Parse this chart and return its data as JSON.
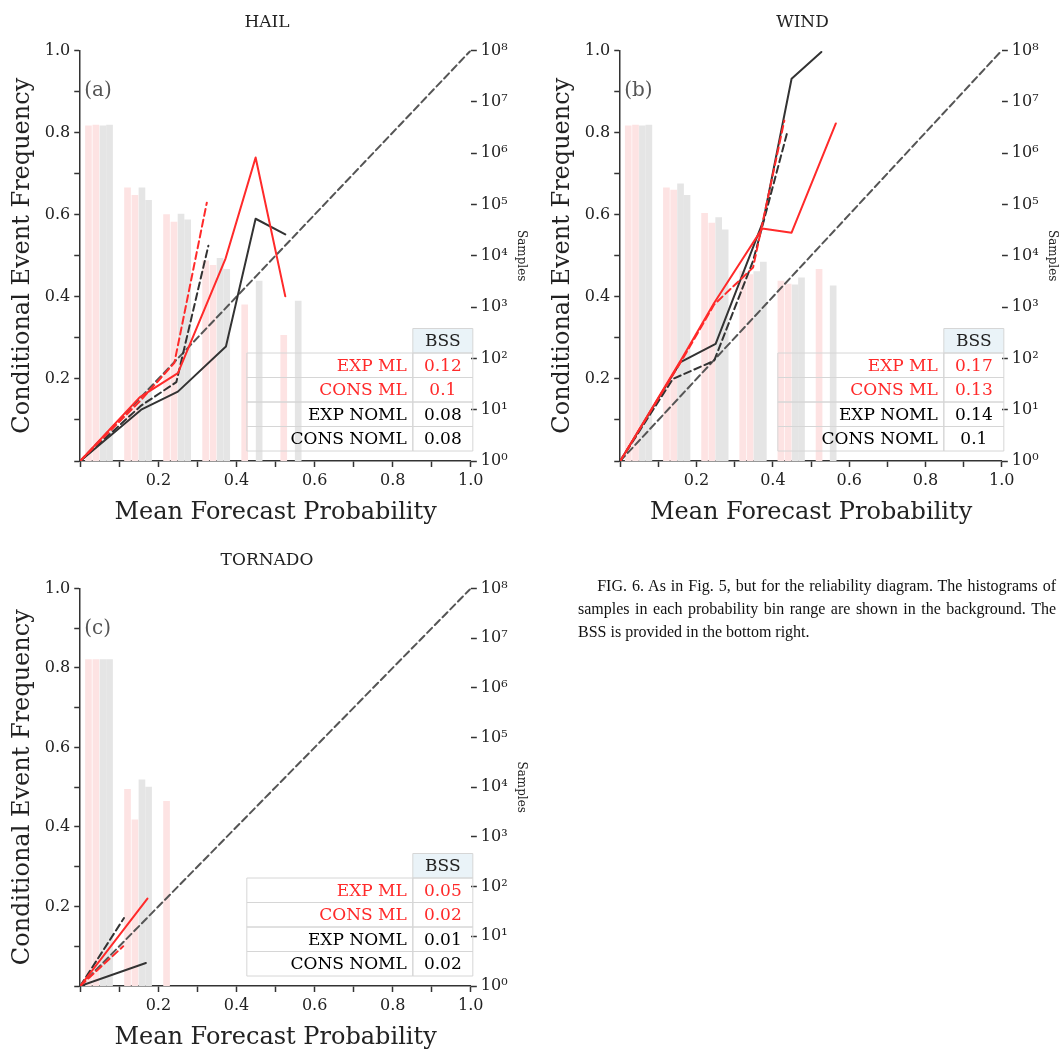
{
  "chart_data": [
    {
      "type": "line",
      "title": "HAIL",
      "xlabel": "Mean Forecast Probability",
      "ylabel": "Conditional Event Frequency",
      "y2label": "Samples",
      "marker": "none",
      "log": "y2",
      "xlim": [
        0,
        1
      ],
      "xticks": [
        {
          "value": 0,
          "label": null
        },
        {
          "value": 0.1,
          "label": null
        },
        0.2,
        {
          "value": 0.3,
          "label": null
        },
        0.4,
        {
          "value": 0.5,
          "label": null
        },
        0.6,
        {
          "value": 0.7,
          "label": null
        },
        0.8,
        {
          "value": 0.9,
          "label": null
        },
        {
          "value": 1,
          "label": "1.0"
        }
      ],
      "ylim": [
        0,
        1
      ],
      "yticks": [
        {
          "value": 0,
          "label": null
        },
        {
          "value": 0.1,
          "label": null
        },
        0.2,
        {
          "value": 0.3,
          "label": null
        },
        0.4,
        {
          "value": 0.5,
          "label": null
        },
        0.6,
        {
          "value": 0.7,
          "label": null
        },
        0.8,
        {
          "value": 0.9,
          "label": null
        },
        {
          "value": 1,
          "label": "1.0"
        }
      ],
      "y2lim": [
        1,
        100000000
      ],
      "y2ticks": [
        {
          "value": 1,
          "label": "10⁰"
        },
        {
          "value": 10,
          "label": "10¹"
        },
        {
          "value": 100,
          "label": "10²"
        },
        {
          "value": 1000,
          "label": "10³"
        },
        {
          "value": 10000,
          "label": "10⁴"
        },
        {
          "value": 100000,
          "label": "10⁵"
        },
        {
          "value": 1000000,
          "label": "10⁶"
        },
        {
          "value": 10000000,
          "label": "10⁷"
        },
        {
          "value": 100000000,
          "label": "10⁸"
        }
      ],
      "annotations": [
        "(a)",
        "BSS",
        "EXP ML",
        "0.12",
        "CONS ML",
        "0.1",
        "EXP NOML",
        "0.08",
        "CONS NOML",
        "0.08"
      ],
      "series": [
        {
          "type": "bar",
          "axis": "y2",
          "color": "#fde3e3",
          "x": [
            0.021,
            0.121,
            0.221,
            0.321,
            0.421,
            0.521
          ],
          "values": [
            3400000,
            210000,
            63000,
            7900,
            1100,
            280
          ]
        },
        {
          "type": "bar",
          "axis": "y2",
          "color": "#fde3e3",
          "x": [
            0.04,
            0.14,
            0.24,
            0.34
          ],
          "values": [
            3500000,
            150000,
            45000,
            6500
          ]
        },
        {
          "type": "bar",
          "axis": "y2",
          "color": "#e5e5e5",
          "x": [
            0.058,
            0.158,
            0.258,
            0.358,
            0.458,
            0.558
          ],
          "values": [
            3400000,
            210000,
            65000,
            8900,
            3200,
            1300
          ]
        },
        {
          "type": "bar",
          "axis": "y2",
          "color": "#e5e5e5",
          "x": [
            0.075,
            0.175,
            0.275,
            0.375
          ],
          "values": [
            3500000,
            120000,
            50000,
            5400
          ]
        },
        {
          "type": "line",
          "line_style": "solid",
          "color": "#ff2a2a",
          "x": [
            0,
            0.152,
            0.25,
            0.372,
            0.449,
            0.525
          ],
          "values": [
            0,
            0.155,
            0.214,
            0.493,
            0.739,
            0.401
          ]
        },
        {
          "type": "line",
          "line_style": "dashed",
          "color": "#ff2a2a",
          "x": [
            0,
            0.156,
            0.241,
            0.324
          ],
          "values": [
            0,
            0.149,
            0.239,
            0.629
          ]
        },
        {
          "type": "line",
          "line_style": "solid",
          "color": "#333333",
          "x": [
            0,
            0.156,
            0.25,
            0.373,
            0.449,
            0.525
          ],
          "values": [
            0,
            0.125,
            0.169,
            0.279,
            0.59,
            0.552
          ]
        },
        {
          "type": "line",
          "line_style": "dashed",
          "color": "#333333",
          "x": [
            0,
            0.156,
            0.246,
            0.328
          ],
          "values": [
            0,
            0.135,
            0.192,
            0.524
          ]
        },
        {
          "type": "line",
          "line_style": "dashed",
          "color": "#555555",
          "x": [
            0,
            1
          ],
          "values": [
            0,
            1
          ]
        }
      ]
    },
    {
      "type": "line",
      "title": "WIND",
      "xlabel": "Mean Forecast Probability",
      "ylabel": "Conditional Event Frequency",
      "y2label": "Samples",
      "marker": "none",
      "log": "y2",
      "xlim": [
        0,
        1
      ],
      "xticks": [
        {
          "value": 0,
          "label": null
        },
        {
          "value": 0.1,
          "label": null
        },
        0.2,
        {
          "value": 0.3,
          "label": null
        },
        0.4,
        {
          "value": 0.5,
          "label": null
        },
        0.6,
        {
          "value": 0.7,
          "label": null
        },
        0.8,
        {
          "value": 0.9,
          "label": null
        },
        {
          "value": 1,
          "label": "1.0"
        }
      ],
      "ylim": [
        0,
        1
      ],
      "yticks": [
        {
          "value": 0,
          "label": null
        },
        {
          "value": 0.1,
          "label": null
        },
        0.2,
        {
          "value": 0.3,
          "label": null
        },
        0.4,
        {
          "value": 0.5,
          "label": null
        },
        0.6,
        {
          "value": 0.7,
          "label": null
        },
        0.8,
        {
          "value": 0.9,
          "label": null
        },
        {
          "value": 1,
          "label": "1.0"
        }
      ],
      "y2lim": [
        1,
        100000000
      ],
      "y2ticks": [
        {
          "value": 1,
          "label": "10⁰"
        },
        {
          "value": 10,
          "label": "10¹"
        },
        {
          "value": 100,
          "label": "10²"
        },
        {
          "value": 1000,
          "label": "10³"
        },
        {
          "value": 10000,
          "label": "10⁴"
        },
        {
          "value": 100000,
          "label": "10⁵"
        },
        {
          "value": 1000000,
          "label": "10⁶"
        },
        {
          "value": 10000000,
          "label": "10⁷"
        },
        {
          "value": 100000000,
          "label": "10⁸"
        }
      ],
      "annotations": [
        "(b)",
        "BSS",
        "EXP ML",
        "0.17",
        "CONS ML",
        "0.13",
        "EXP NOML",
        "0.14",
        "CONS NOML",
        "0.1"
      ],
      "series": [
        {
          "type": "bar",
          "axis": "y2",
          "color": "#fde3e3",
          "x": [
            0.021,
            0.121,
            0.221,
            0.321,
            0.421,
            0.521
          ],
          "values": [
            3400000,
            210000,
            67000,
            5000,
            3200,
            5400
          ]
        },
        {
          "type": "bar",
          "axis": "y2",
          "color": "#fde3e3",
          "x": [
            0.04,
            0.14,
            0.24,
            0.34,
            0.44
          ],
          "values": [
            3500000,
            190000,
            43000,
            4300,
            2800
          ]
        },
        {
          "type": "bar",
          "axis": "y2",
          "color": "#e5e5e5",
          "x": [
            0.058,
            0.158,
            0.258,
            0.358,
            0.458,
            0.558
          ],
          "values": [
            3400000,
            250000,
            55000,
            4900,
            2700,
            2600
          ]
        },
        {
          "type": "bar",
          "axis": "y2",
          "color": "#e5e5e5",
          "x": [
            0.075,
            0.175,
            0.275,
            0.375,
            0.475
          ],
          "values": [
            3500000,
            150000,
            32000,
            7500,
            3700
          ]
        },
        {
          "type": "line",
          "line_style": "solid",
          "color": "#ff2a2a",
          "x": [
            0,
            0.165,
            0.246,
            0.372,
            0.449,
            0.565
          ],
          "values": [
            0,
            0.255,
            0.385,
            0.566,
            0.556,
            0.822
          ]
        },
        {
          "type": "line",
          "line_style": "dashed",
          "color": "#ff2a2a",
          "x": [
            0,
            0.165,
            0.246,
            0.348,
            0.43
          ],
          "values": [
            0,
            0.251,
            0.381,
            0.471,
            0.829
          ]
        },
        {
          "type": "line",
          "line_style": "solid",
          "color": "#333333",
          "x": [
            0,
            0.158,
            0.25,
            0.375,
            0.449,
            0.527
          ],
          "values": [
            0,
            0.241,
            0.285,
            0.585,
            0.931,
            0.996
          ]
        },
        {
          "type": "line",
          "line_style": "dashed",
          "color": "#333333",
          "x": [
            0,
            0.138,
            0.246,
            0.348,
            0.439
          ],
          "values": [
            0,
            0.2,
            0.244,
            0.487,
            0.805
          ]
        },
        {
          "type": "line",
          "line_style": "dashed",
          "color": "#555555",
          "x": [
            0,
            1
          ],
          "values": [
            0,
            1
          ]
        }
      ]
    },
    {
      "type": "line",
      "title": "TORNADO",
      "xlabel": "Mean Forecast Probability",
      "ylabel": "Conditional Event Frequency",
      "y2label": "Samples",
      "marker": "none",
      "log": "y2",
      "xlim": [
        0,
        1
      ],
      "xticks": [
        {
          "value": 0,
          "label": null
        },
        {
          "value": 0.1,
          "label": null
        },
        0.2,
        {
          "value": 0.3,
          "label": null
        },
        0.4,
        {
          "value": 0.5,
          "label": null
        },
        0.6,
        {
          "value": 0.7,
          "label": null
        },
        0.8,
        {
          "value": 0.9,
          "label": null
        },
        {
          "value": 1,
          "label": "1.0"
        }
      ],
      "ylim": [
        0,
        1
      ],
      "yticks": [
        {
          "value": 0,
          "label": null
        },
        {
          "value": 0.1,
          "label": null
        },
        0.2,
        {
          "value": 0.3,
          "label": null
        },
        0.4,
        {
          "value": 0.5,
          "label": null
        },
        0.6,
        {
          "value": 0.7,
          "label": null
        },
        0.8,
        {
          "value": 0.9,
          "label": null
        },
        {
          "value": 1,
          "label": "1.0"
        }
      ],
      "y2lim": [
        1,
        100000000
      ],
      "y2ticks": [
        {
          "value": 1,
          "label": "10⁰"
        },
        {
          "value": 10,
          "label": "10¹"
        },
        {
          "value": 100,
          "label": "10²"
        },
        {
          "value": 1000,
          "label": "10³"
        },
        {
          "value": 10000,
          "label": "10⁴"
        },
        {
          "value": 100000,
          "label": "10⁵"
        },
        {
          "value": 1000000,
          "label": "10⁶"
        },
        {
          "value": 10000000,
          "label": "10⁷"
        },
        {
          "value": 100000000,
          "label": "10⁸"
        }
      ],
      "annotations": [
        "(c)",
        "BSS",
        "EXP ML",
        "0.05",
        "CONS ML",
        "0.02",
        "EXP NOML",
        "0.01",
        "CONS NOML",
        "0.02"
      ],
      "series": [
        {
          "type": "bar",
          "axis": "y2",
          "color": "#fde3e3",
          "x": [
            0.021,
            0.121,
            0.221
          ],
          "values": [
            3700000,
            9100,
            5200
          ]
        },
        {
          "type": "bar",
          "axis": "y2",
          "color": "#fde3e3",
          "x": [
            0.04,
            0.14
          ],
          "values": [
            3700000,
            2200
          ]
        },
        {
          "type": "bar",
          "axis": "y2",
          "color": "#e5e5e5",
          "x": [
            0.058,
            0.158
          ],
          "values": [
            3700000,
            14000
          ]
        },
        {
          "type": "bar",
          "axis": "y2",
          "color": "#e5e5e5",
          "x": [
            0.075,
            0.175
          ],
          "values": [
            3700000,
            10000
          ]
        },
        {
          "type": "line",
          "line_style": "solid",
          "color": "#ff2a2a",
          "x": [
            0,
            0.172
          ],
          "values": [
            0,
            0.22
          ]
        },
        {
          "type": "line",
          "line_style": "dashed",
          "color": "#ff2a2a",
          "x": [
            0,
            0.11
          ],
          "values": [
            0,
            0.1
          ]
        },
        {
          "type": "line",
          "line_style": "solid",
          "color": "#333333",
          "x": [
            0,
            0.168
          ],
          "values": [
            0,
            0.058
          ]
        },
        {
          "type": "line",
          "line_style": "dashed",
          "color": "#333333",
          "x": [
            0,
            0.112
          ],
          "values": [
            0,
            0.171
          ]
        },
        {
          "type": "line",
          "line_style": "dashed",
          "color": "#555555",
          "x": [
            0,
            1
          ],
          "values": [
            0,
            1
          ]
        }
      ]
    },
    {
      "type": "other",
      "annotations": [
        "FIG. 6. As in Fig. 5, but for the reliability diagram. The histograms of samples in each probability bin range are shown in the background. The BSS is provided in the bottom right."
      ]
    }
  ]
}
